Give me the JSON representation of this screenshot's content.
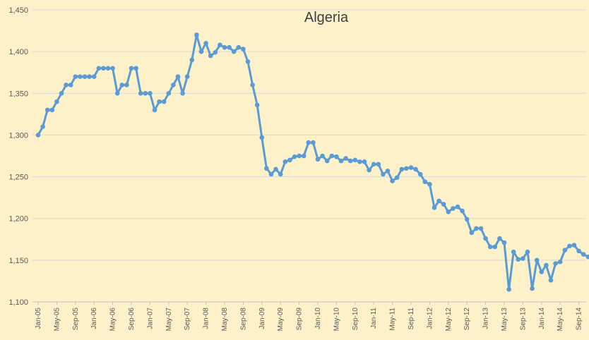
{
  "chart_data": {
    "type": "line",
    "title": "Algeria",
    "xlabel": "",
    "ylabel": "",
    "ylim": [
      1100,
      1450
    ],
    "yticks": [
      1100,
      1150,
      1200,
      1250,
      1300,
      1350,
      1400,
      1450
    ],
    "ytick_labels": [
      "1,100",
      "1,150",
      "1,200",
      "1,250",
      "1,300",
      "1,350",
      "1,400",
      "1,450"
    ],
    "grid": "horizontal",
    "legend": "none",
    "color": "#5b9bd5",
    "x_start": "2005-01",
    "x_tick_every_months": 4,
    "x_tick_labels": [
      "Jan-05",
      "May-05",
      "Sep-05",
      "Jan-06",
      "May-06",
      "Sep-06",
      "Jan-07",
      "May-07",
      "Sep-07",
      "Jan-08",
      "May-08",
      "Sep-08",
      "Jan-09",
      "May-09",
      "Sep-09",
      "Jan-10",
      "May-10",
      "Sep-10",
      "Jan-11",
      "May-11",
      "Sep-11",
      "Jan-12",
      "May-12",
      "Sep-12",
      "Jan-13",
      "May-13",
      "Sep-13",
      "Jan-14",
      "May-14",
      "Sep-14"
    ],
    "series": [
      {
        "values": [
          1300,
          1310,
          1330,
          1330,
          1340,
          1350,
          1360,
          1360,
          1370,
          1370,
          1370,
          1370,
          1370,
          1380,
          1380,
          1380,
          1380,
          1350,
          1360,
          1360,
          1380,
          1380,
          1350,
          1350,
          1350,
          1330,
          1340,
          1340,
          1350,
          1360,
          1370,
          1350,
          1370,
          1390,
          1420,
          1400,
          1410,
          1395,
          1399,
          1408,
          1405,
          1405,
          1400,
          1405,
          1403,
          1388,
          1360,
          1336,
          1297,
          1260,
          1253,
          1259,
          1253,
          1268,
          1270,
          1274,
          1275,
          1275,
          1291,
          1291,
          1271,
          1275,
          1269,
          1275,
          1274,
          1269,
          1272,
          1269,
          1270,
          1268,
          1268,
          1258,
          1265,
          1265,
          1253,
          1257,
          1245,
          1249,
          1259,
          1260,
          1261,
          1259,
          1253,
          1244,
          1241,
          1213,
          1221,
          1217,
          1208,
          1212,
          1214,
          1209,
          1199,
          1183,
          1188,
          1188,
          1176,
          1166,
          1166,
          1176,
          1171,
          1115,
          1160,
          1151,
          1152,
          1160,
          1116,
          1150,
          1136,
          1144,
          1126,
          1146,
          1148,
          1162,
          1167,
          1168,
          1161,
          1157,
          1154
        ]
      }
    ]
  }
}
